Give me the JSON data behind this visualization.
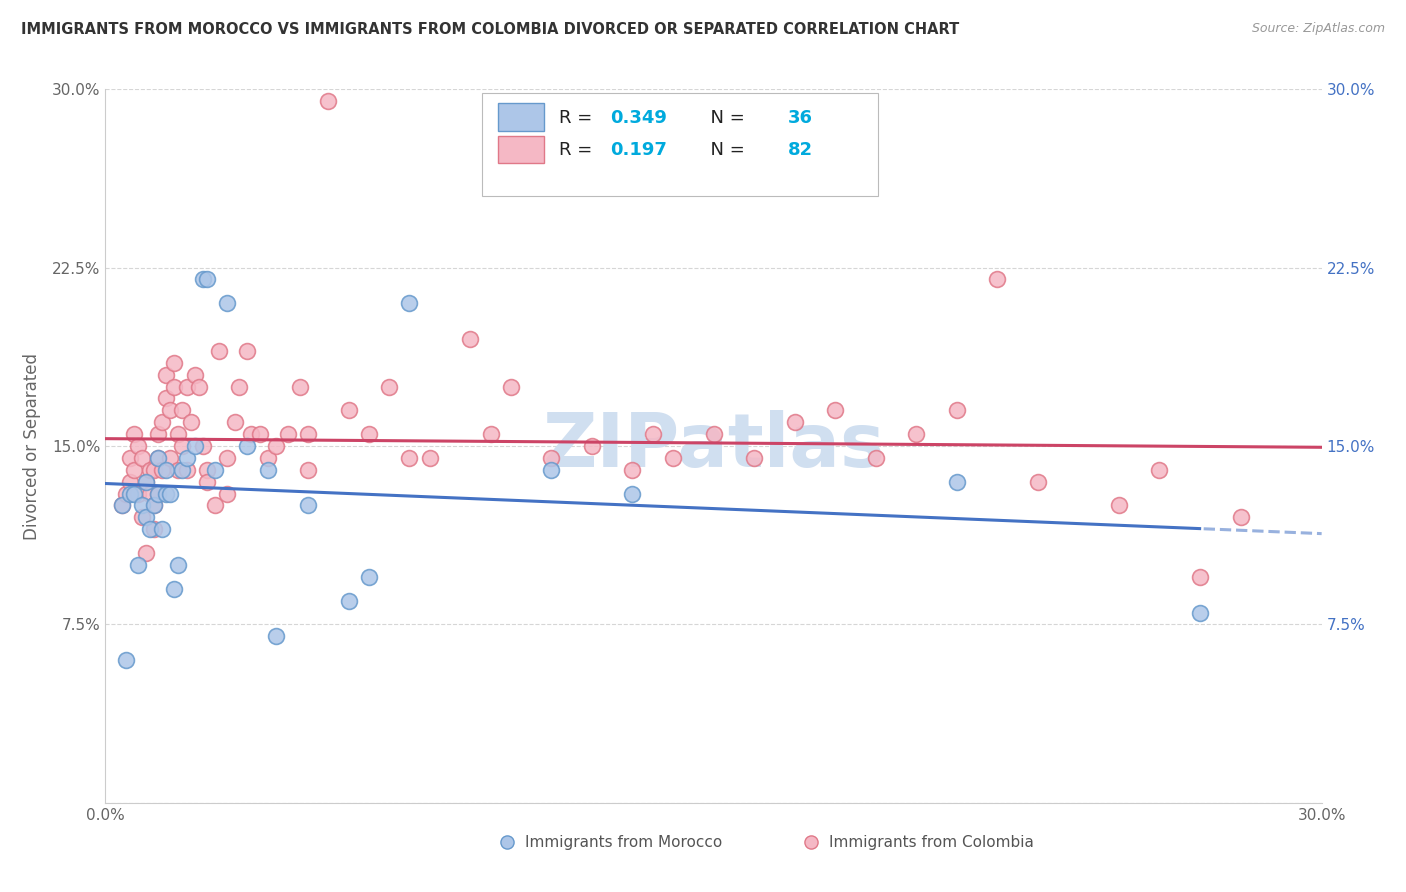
{
  "title": "IMMIGRANTS FROM MOROCCO VS IMMIGRANTS FROM COLOMBIA DIVORCED OR SEPARATED CORRELATION CHART",
  "source": "Source: ZipAtlas.com",
  "ylabel": "Divorced or Separated",
  "xlim": [
    0.0,
    0.3
  ],
  "ylim": [
    0.0,
    0.3
  ],
  "morocco_R": 0.349,
  "morocco_N": 36,
  "colombia_R": 0.197,
  "colombia_N": 82,
  "morocco_color": "#adc6e8",
  "morocco_edge_color": "#6699cc",
  "colombia_color": "#f5b8c5",
  "colombia_edge_color": "#e07888",
  "morocco_line_color": "#4472c4",
  "colombia_line_color": "#cc4466",
  "watermark_color": "#d0dff0",
  "legend_morocco_label": "Immigrants from Morocco",
  "legend_colombia_label": "Immigrants from Colombia",
  "morocco_x": [
    0.004,
    0.005,
    0.006,
    0.007,
    0.008,
    0.009,
    0.01,
    0.01,
    0.011,
    0.012,
    0.013,
    0.013,
    0.014,
    0.015,
    0.015,
    0.016,
    0.017,
    0.018,
    0.019,
    0.02,
    0.022,
    0.024,
    0.025,
    0.027,
    0.03,
    0.035,
    0.04,
    0.042,
    0.05,
    0.06,
    0.065,
    0.075,
    0.11,
    0.13,
    0.21,
    0.27
  ],
  "morocco_y": [
    0.125,
    0.06,
    0.13,
    0.13,
    0.1,
    0.125,
    0.12,
    0.135,
    0.115,
    0.125,
    0.13,
    0.145,
    0.115,
    0.13,
    0.14,
    0.13,
    0.09,
    0.1,
    0.14,
    0.145,
    0.15,
    0.22,
    0.22,
    0.14,
    0.21,
    0.15,
    0.14,
    0.07,
    0.125,
    0.085,
    0.095,
    0.21,
    0.14,
    0.13,
    0.135,
    0.08
  ],
  "colombia_x": [
    0.004,
    0.005,
    0.006,
    0.006,
    0.007,
    0.007,
    0.008,
    0.008,
    0.009,
    0.009,
    0.01,
    0.01,
    0.011,
    0.011,
    0.012,
    0.012,
    0.012,
    0.013,
    0.013,
    0.013,
    0.014,
    0.014,
    0.015,
    0.015,
    0.016,
    0.016,
    0.017,
    0.017,
    0.018,
    0.018,
    0.019,
    0.019,
    0.02,
    0.02,
    0.021,
    0.022,
    0.023,
    0.024,
    0.025,
    0.025,
    0.027,
    0.028,
    0.03,
    0.03,
    0.032,
    0.033,
    0.035,
    0.036,
    0.038,
    0.04,
    0.042,
    0.045,
    0.048,
    0.05,
    0.05,
    0.055,
    0.06,
    0.065,
    0.07,
    0.075,
    0.08,
    0.09,
    0.095,
    0.1,
    0.11,
    0.12,
    0.13,
    0.135,
    0.14,
    0.15,
    0.16,
    0.17,
    0.18,
    0.19,
    0.2,
    0.21,
    0.22,
    0.23,
    0.25,
    0.26,
    0.27,
    0.28
  ],
  "colombia_y": [
    0.125,
    0.13,
    0.135,
    0.145,
    0.14,
    0.155,
    0.13,
    0.15,
    0.12,
    0.145,
    0.105,
    0.135,
    0.13,
    0.14,
    0.115,
    0.125,
    0.14,
    0.13,
    0.145,
    0.155,
    0.14,
    0.16,
    0.17,
    0.18,
    0.145,
    0.165,
    0.175,
    0.185,
    0.14,
    0.155,
    0.15,
    0.165,
    0.14,
    0.175,
    0.16,
    0.18,
    0.175,
    0.15,
    0.14,
    0.135,
    0.125,
    0.19,
    0.145,
    0.13,
    0.16,
    0.175,
    0.19,
    0.155,
    0.155,
    0.145,
    0.15,
    0.155,
    0.175,
    0.14,
    0.155,
    0.295,
    0.165,
    0.155,
    0.175,
    0.145,
    0.145,
    0.195,
    0.155,
    0.175,
    0.145,
    0.15,
    0.14,
    0.155,
    0.145,
    0.155,
    0.145,
    0.16,
    0.165,
    0.145,
    0.155,
    0.165,
    0.22,
    0.135,
    0.125,
    0.14,
    0.095,
    0.12
  ]
}
